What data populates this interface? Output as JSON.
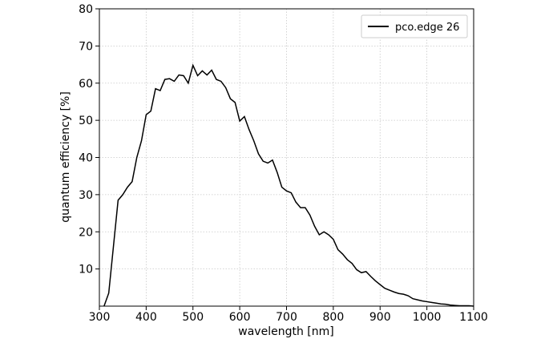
{
  "chart_data": {
    "type": "line",
    "x_label": "wavelength [nm]",
    "y_label": "quantum efficiency [%]",
    "x": [
      310,
      320,
      330,
      340,
      350,
      360,
      370,
      380,
      390,
      400,
      410,
      420,
      430,
      440,
      450,
      460,
      470,
      480,
      490,
      500,
      510,
      520,
      530,
      540,
      550,
      560,
      570,
      580,
      590,
      600,
      610,
      620,
      630,
      640,
      650,
      660,
      670,
      680,
      690,
      700,
      710,
      720,
      730,
      740,
      750,
      760,
      770,
      780,
      790,
      800,
      810,
      820,
      830,
      840,
      850,
      860,
      870,
      880,
      890,
      900,
      910,
      920,
      930,
      940,
      950,
      960,
      970,
      980,
      990,
      1000,
      1010,
      1020,
      1030,
      1040,
      1050,
      1060,
      1070,
      1080,
      1090,
      1100
    ],
    "series": [
      {
        "name": "pco.edge 26",
        "color": "#000000",
        "values": [
          0,
          3.5,
          16,
          28.5,
          30,
          32,
          33.5,
          40,
          44.5,
          51.5,
          52.5,
          58.5,
          58,
          61,
          61.2,
          60.5,
          62.2,
          62,
          60,
          64.8,
          62,
          63.3,
          62.2,
          63.5,
          61,
          60.5,
          58.8,
          55.8,
          54.8,
          49.8,
          51,
          47.5,
          44.5,
          41,
          39,
          38.5,
          39.3,
          36,
          32,
          31,
          30.5,
          28,
          26.5,
          26.5,
          24.5,
          21.5,
          19.2,
          20,
          19.2,
          18,
          15.2,
          14,
          12.5,
          11.5,
          9.8,
          9,
          9.3,
          8,
          6.8,
          5.8,
          4.8,
          4.3,
          3.8,
          3.4,
          3.2,
          2.8,
          2,
          1.7,
          1.4,
          1.2,
          1,
          0.8,
          0.6,
          0.5,
          0.3,
          0.2,
          0.1,
          0.1,
          0.1,
          0
        ]
      }
    ],
    "xlim": [
      300,
      1100
    ],
    "ylim": [
      0,
      80
    ],
    "xticks": [
      300,
      400,
      500,
      600,
      700,
      800,
      900,
      1000,
      1100
    ],
    "yticks": [
      10,
      20,
      30,
      40,
      50,
      60,
      70,
      80
    ],
    "grid": true,
    "legend": "upper right"
  }
}
